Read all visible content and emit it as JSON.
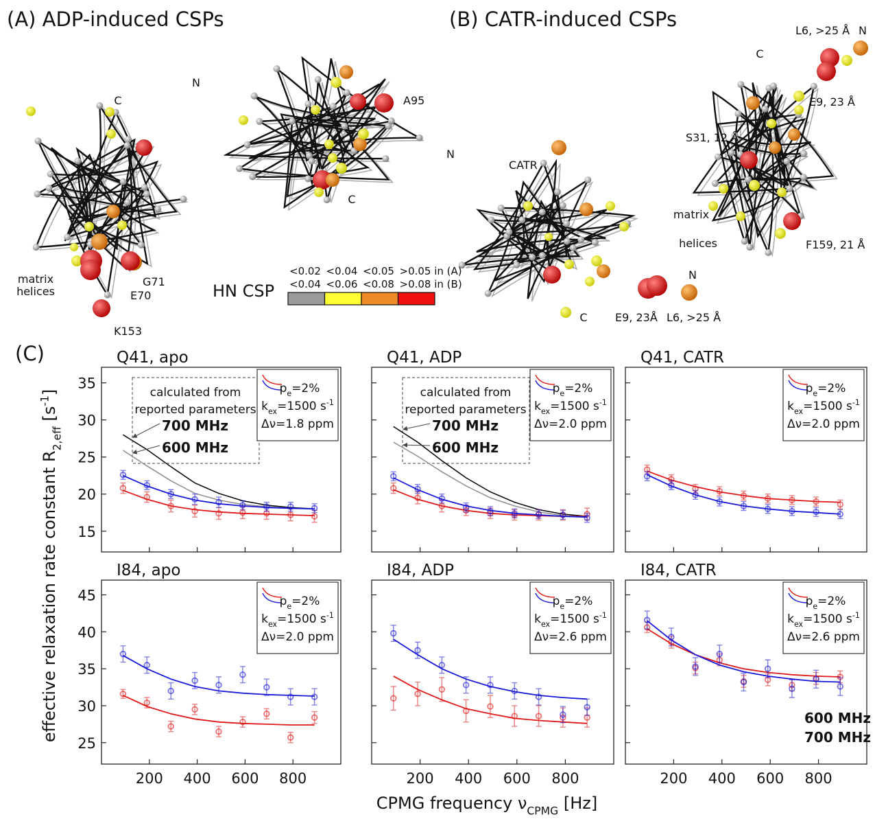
{
  "figure": {
    "panel_a": "(A) ADP-induced CSPs",
    "panel_b": "(B) CATR-induced CSPs",
    "panel_c": "(C)",
    "labels_a": [
      "C",
      "N",
      "A95",
      "N",
      "C",
      "matrix",
      "helices",
      "G71",
      "E70",
      "K153"
    ],
    "labels_b": [
      "CATR",
      "C",
      "E9, 23Å",
      "L6, >25 Å",
      "N",
      "L6, >25 Å",
      "N",
      "C",
      "E9, 23 Å",
      "S31, 12 Å",
      "matrix",
      "helices",
      "F159, 21 Å"
    ],
    "csp_scale": {
      "title": "HN CSP",
      "labels_a": [
        "<0.02",
        "<0.04",
        "<0.05",
        ">0.05 in (A)"
      ],
      "labels_b": [
        "<0.04",
        "<0.06",
        "<0.08",
        ">0.08 in (B)"
      ],
      "colors": [
        "#9a9a9a",
        "#ffff33",
        "#f08c28",
        "#f01010"
      ]
    },
    "y_label": [
      {
        "text": "effective relaxation rate constant R"
      },
      {
        "sub": "2,eff"
      },
      {
        "text": " [s"
      },
      {
        "sup": "-1"
      },
      {
        "text": "]"
      }
    ],
    "x_label": [
      {
        "text": "CPMG frequency ν"
      },
      {
        "sub": "CPMG"
      },
      {
        "text": " [Hz]"
      }
    ]
  },
  "chart_data": [
    {
      "type": "scatter",
      "title": "Q41, apo",
      "x": [
        90,
        190,
        290,
        390,
        490,
        590,
        690,
        790,
        890
      ],
      "xlim": [
        0,
        1000
      ],
      "xticks": [
        200,
        400,
        600,
        800
      ],
      "xtick_labels": false,
      "ylim": [
        12.2,
        37.1
      ],
      "yticks": [
        15,
        20,
        25,
        30,
        35
      ],
      "ytick_labels": true,
      "series": [
        {
          "color": "#e01818",
          "values": [
            20.8,
            19.6,
            18.4,
            17.7,
            17.4,
            17.5,
            17.4,
            17.2,
            17.0
          ],
          "errors": [
            0.7,
            0.7,
            0.8,
            0.8,
            0.8,
            0.8,
            0.8,
            0.8,
            0.8
          ],
          "fit": [
            20.5,
            19.3,
            18.4,
            17.9,
            17.6,
            17.4,
            17.3,
            17.2,
            17.1
          ]
        },
        {
          "color": "#1818d8",
          "values": [
            22.6,
            21.2,
            20.0,
            19.3,
            18.9,
            18.5,
            18.3,
            18.3,
            18.1
          ],
          "errors": [
            0.6,
            0.6,
            0.6,
            0.7,
            0.7,
            0.6,
            0.6,
            0.6,
            0.6
          ],
          "fit": [
            22.5,
            21.1,
            20.0,
            19.2,
            18.7,
            18.4,
            18.2,
            18.1,
            18.0
          ]
        }
      ],
      "calculated_note": [
        "calculated from",
        "reported parameters"
      ],
      "calculated": [
        {
          "name": "700 MHz",
          "color": "#000000",
          "values": [
            28.0,
            26.0,
            23.7,
            21.5,
            20.1,
            19.1,
            18.5,
            18.2,
            18.0
          ]
        },
        {
          "name": "600 MHz",
          "color": "#8c8c8c",
          "values": [
            25.9,
            23.8,
            21.8,
            20.1,
            19.2,
            18.6,
            18.3,
            18.1,
            18.0
          ]
        }
      ],
      "params": [
        [
          {
            "text": "p"
          },
          {
            "sub": "e"
          },
          {
            "text": "=2%"
          }
        ],
        [
          {
            "text": "k"
          },
          {
            "sub": "ex"
          },
          {
            "text": "=1500 s"
          },
          {
            "sup": "-1"
          }
        ],
        [
          {
            "text": "Δν=1.8 ppm"
          }
        ]
      ]
    },
    {
      "type": "scatter",
      "title": "Q41, ADP",
      "x": [
        90,
        190,
        290,
        390,
        490,
        590,
        690,
        790,
        890
      ],
      "xlim": [
        0,
        1000
      ],
      "xticks": [
        200,
        400,
        600,
        800
      ],
      "xtick_labels": false,
      "ylim": [
        12.2,
        37.1
      ],
      "yticks": [
        15,
        20,
        25,
        30,
        35
      ],
      "ytick_labels": false,
      "series": [
        {
          "color": "#e01818",
          "values": [
            20.8,
            19.5,
            18.4,
            17.8,
            17.4,
            17.2,
            17.2,
            17.2,
            17.3
          ],
          "errors": [
            0.7,
            0.8,
            0.8,
            0.7,
            0.7,
            0.7,
            0.7,
            0.7,
            0.8
          ],
          "fit": [
            20.6,
            19.3,
            18.4,
            17.8,
            17.4,
            17.2,
            17.1,
            17.0,
            17.0
          ]
        },
        {
          "color": "#1818d8",
          "values": [
            22.4,
            20.7,
            19.4,
            18.2,
            17.7,
            17.4,
            17.3,
            17.2,
            16.8
          ],
          "errors": [
            0.6,
            0.6,
            0.6,
            0.6,
            0.6,
            0.6,
            0.6,
            0.6,
            0.6
          ],
          "fit": [
            22.2,
            20.6,
            19.3,
            18.4,
            17.8,
            17.4,
            17.2,
            17.0,
            16.9
          ]
        }
      ],
      "calculated_note": [
        "calculated from",
        "reported parameters"
      ],
      "calculated": [
        {
          "name": "700 MHz",
          "color": "#000000",
          "values": [
            29.1,
            27.0,
            24.5,
            22.2,
            20.3,
            18.9,
            17.9,
            17.3,
            17.0
          ]
        },
        {
          "name": "600 MHz",
          "color": "#8c8c8c",
          "values": [
            27.0,
            25.1,
            23.0,
            21.1,
            19.5,
            18.4,
            17.6,
            17.1,
            16.9
          ]
        }
      ],
      "params": [
        [
          {
            "text": "p"
          },
          {
            "sub": "e"
          },
          {
            "text": "=2%"
          }
        ],
        [
          {
            "text": "k"
          },
          {
            "sub": "ex"
          },
          {
            "text": "=1500 s"
          },
          {
            "sup": "-1"
          }
        ],
        [
          {
            "text": "Δν=2.0 ppm"
          }
        ]
      ]
    },
    {
      "type": "scatter",
      "title": "Q41, CATR",
      "x": [
        90,
        190,
        290,
        390,
        490,
        590,
        690,
        790,
        890
      ],
      "xlim": [
        0,
        1000
      ],
      "xticks": [
        200,
        400,
        600,
        800
      ],
      "xtick_labels": false,
      "ylim": [
        12.2,
        37.1
      ],
      "yticks": [
        15,
        20,
        25,
        30,
        35
      ],
      "ytick_labels": false,
      "series": [
        {
          "color": "#e01818",
          "values": [
            23.3,
            22.0,
            20.7,
            20.4,
            19.8,
            19.4,
            19.2,
            19.0,
            18.6
          ],
          "errors": [
            0.6,
            0.6,
            0.6,
            0.6,
            0.6,
            0.6,
            0.6,
            0.6,
            0.6
          ],
          "fit": [
            23.1,
            21.9,
            21.0,
            20.3,
            19.8,
            19.4,
            19.2,
            19.0,
            18.9
          ]
        },
        {
          "color": "#1818d8",
          "values": [
            22.4,
            21.2,
            19.9,
            19.0,
            18.4,
            18.0,
            17.7,
            17.6,
            17.3
          ],
          "errors": [
            0.6,
            0.6,
            0.6,
            0.6,
            0.6,
            0.6,
            0.6,
            0.6,
            0.6
          ],
          "fit": [
            22.6,
            21.1,
            19.9,
            19.0,
            18.4,
            18.0,
            17.7,
            17.5,
            17.3
          ]
        }
      ],
      "params": [
        [
          {
            "text": "p"
          },
          {
            "sub": "e"
          },
          {
            "text": "=2%"
          }
        ],
        [
          {
            "text": "k"
          },
          {
            "sub": "ex"
          },
          {
            "text": "=1500 s"
          },
          {
            "sup": "-1"
          }
        ],
        [
          {
            "text": "Δν=2.0 ppm"
          }
        ]
      ]
    },
    {
      "type": "scatter",
      "title": "I84, apo",
      "x": [
        90,
        190,
        290,
        390,
        490,
        590,
        690,
        790,
        890
      ],
      "xlim": [
        0,
        1000
      ],
      "xticks": [
        200,
        400,
        600,
        800
      ],
      "xtick_labels": true,
      "ylim": [
        22.1,
        47
      ],
      "yticks": [
        25,
        30,
        35,
        40,
        45
      ],
      "ytick_labels": true,
      "series": [
        {
          "color": "#e01818",
          "values": [
            31.6,
            30.4,
            27.2,
            29.5,
            26.5,
            27.8,
            28.9,
            25.7,
            28.4
          ],
          "errors": [
            0.6,
            0.7,
            0.7,
            0.7,
            0.7,
            0.7,
            0.7,
            0.7,
            0.8
          ],
          "fit": [
            31.4,
            29.9,
            28.9,
            28.2,
            27.8,
            27.6,
            27.5,
            27.4,
            27.4
          ]
        },
        {
          "color": "#1818d8",
          "values": [
            37.0,
            35.5,
            32.0,
            33.4,
            32.8,
            34.2,
            32.5,
            31.2,
            31.2
          ],
          "errors": [
            1.1,
            1.1,
            1.1,
            1.1,
            1.1,
            1.1,
            1.1,
            1.1,
            1.1
          ],
          "fit": [
            36.8,
            35.0,
            33.6,
            32.6,
            32.0,
            31.7,
            31.5,
            31.4,
            31.3
          ]
        }
      ],
      "params": [
        [
          {
            "text": "p"
          },
          {
            "sub": "e"
          },
          {
            "text": "=2%"
          }
        ],
        [
          {
            "text": "k"
          },
          {
            "sub": "ex"
          },
          {
            "text": "=1500 s"
          },
          {
            "sup": "-1"
          }
        ],
        [
          {
            "text": "Δν=2.0 ppm"
          }
        ]
      ]
    },
    {
      "type": "scatter",
      "title": "I84, ADP",
      "x": [
        90,
        190,
        290,
        390,
        490,
        590,
        690,
        790,
        890
      ],
      "xlim": [
        0,
        1000
      ],
      "xticks": [
        200,
        400,
        600,
        800
      ],
      "xtick_labels": true,
      "ylim": [
        22.1,
        47
      ],
      "yticks": [
        25,
        30,
        35,
        40,
        45
      ],
      "ytick_labels": false,
      "series": [
        {
          "color": "#e01818",
          "values": [
            31.0,
            31.6,
            32.2,
            29.3,
            29.9,
            28.6,
            28.6,
            28.4,
            28.4
          ],
          "errors": [
            1.6,
            1.6,
            1.6,
            1.5,
            1.5,
            1.4,
            1.4,
            1.3,
            1.3
          ],
          "fit": [
            34.0,
            32.2,
            30.8,
            29.6,
            28.9,
            28.3,
            28.0,
            27.8,
            27.6
          ]
        },
        {
          "color": "#1818d8",
          "values": [
            39.8,
            37.5,
            35.5,
            32.8,
            32.8,
            32.0,
            31.2,
            28.8,
            29.8
          ],
          "errors": [
            1.1,
            1.1,
            1.1,
            1.1,
            1.1,
            1.1,
            1.1,
            1.1,
            1.1
          ],
          "fit": [
            39.0,
            36.9,
            35.0,
            33.6,
            32.6,
            31.9,
            31.4,
            31.1,
            30.9
          ]
        }
      ],
      "params": [
        [
          {
            "text": "p"
          },
          {
            "sub": "e"
          },
          {
            "text": "=2%"
          }
        ],
        [
          {
            "text": "k"
          },
          {
            "sub": "ex"
          },
          {
            "text": "=1500 s"
          },
          {
            "sup": "-1"
          }
        ],
        [
          {
            "text": "Δν=2.6 ppm"
          }
        ]
      ]
    },
    {
      "type": "scatter",
      "title": "I84, CATR",
      "x": [
        90,
        190,
        290,
        390,
        490,
        590,
        690,
        790,
        890
      ],
      "xlim": [
        0,
        1000
      ],
      "xticks": [
        200,
        400,
        600,
        800
      ],
      "xtick_labels": true,
      "ylim": [
        22.1,
        47
      ],
      "yticks": [
        25,
        30,
        35,
        40,
        45
      ],
      "ytick_labels": false,
      "legend": "bottom-right",
      "series": [
        {
          "name": "600 MHz",
          "color": "#e01818",
          "values": [
            40.6,
            38.6,
            35.1,
            36.2,
            33.3,
            33.5,
            32.8,
            33.7,
            33.9
          ],
          "errors": [
            0.7,
            0.8,
            0.8,
            0.8,
            0.8,
            0.8,
            0.8,
            0.8,
            0.8
          ],
          "fit": [
            40.4,
            38.4,
            36.9,
            35.8,
            35.0,
            34.5,
            34.2,
            34.0,
            33.9
          ]
        },
        {
          "name": "700 MHz",
          "color": "#1818d8",
          "values": [
            41.6,
            39.3,
            35.3,
            37.0,
            33.2,
            35.0,
            32.3,
            33.6,
            32.6
          ],
          "errors": [
            1.2,
            1.2,
            1.2,
            1.2,
            1.2,
            1.2,
            1.2,
            1.2,
            1.2
          ],
          "fit": [
            41.5,
            38.9,
            36.9,
            35.5,
            34.6,
            34.0,
            33.6,
            33.3,
            33.2
          ]
        }
      ],
      "params": [
        [
          {
            "text": "p"
          },
          {
            "sub": "e"
          },
          {
            "text": "=2%"
          }
        ],
        [
          {
            "text": "k"
          },
          {
            "sub": "ex"
          },
          {
            "text": "=1500 s"
          },
          {
            "sup": "-1"
          }
        ],
        [
          {
            "text": "Δν=2.6 ppm"
          }
        ]
      ]
    }
  ]
}
